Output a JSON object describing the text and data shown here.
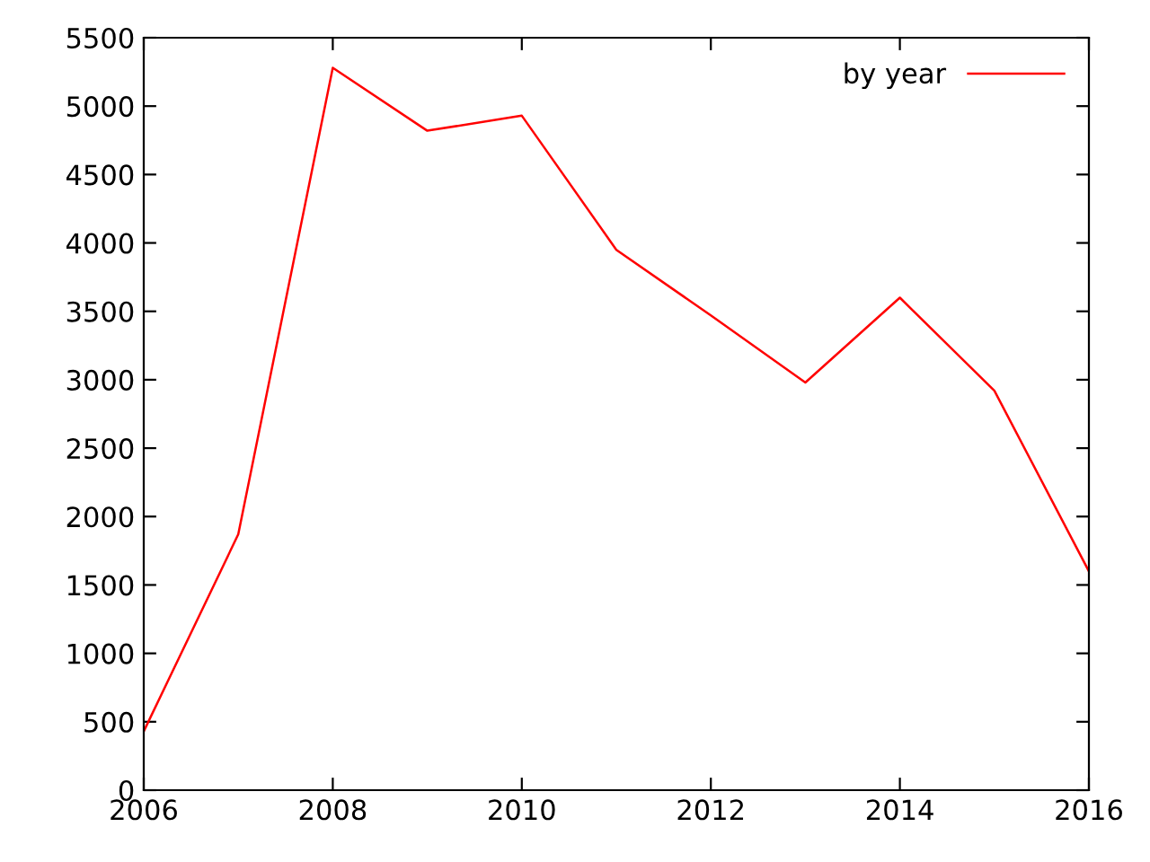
{
  "chart_data": {
    "type": "line",
    "x": [
      2006,
      2007,
      2008,
      2009,
      2010,
      2011,
      2012,
      2013,
      2014,
      2015,
      2016
    ],
    "series": [
      {
        "name": "by year",
        "color": "#ff0000",
        "values": [
          430,
          1870,
          5280,
          4820,
          4930,
          3950,
          3470,
          2980,
          3600,
          2920,
          1600
        ]
      }
    ],
    "xlim": [
      2006,
      2016
    ],
    "xticks": [
      2006,
      2008,
      2010,
      2012,
      2014,
      2016
    ],
    "ylim": [
      0,
      5500
    ],
    "yticks": [
      0,
      500,
      1000,
      1500,
      2000,
      2500,
      3000,
      3500,
      4000,
      4500,
      5000,
      5500
    ],
    "grid": false,
    "legend": "top right",
    "marker": "none",
    "line_style": "solid"
  }
}
